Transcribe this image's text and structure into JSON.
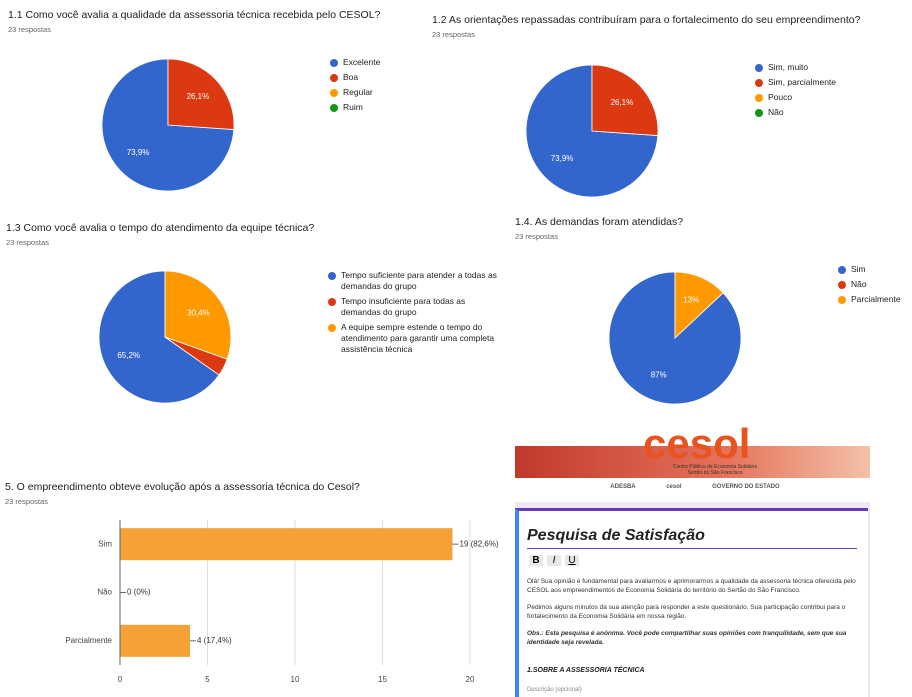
{
  "chart_data": [
    {
      "type": "pie",
      "title": "1.1 Como você avalia a qualidade da assessoria técnica recebida pelo CESOL?",
      "subtitle": "23 respostas",
      "categories": [
        "Excelente",
        "Boa",
        "Regular",
        "Ruim"
      ],
      "values": [
        73.9,
        26.1,
        0,
        0
      ],
      "value_labels": [
        "73,9%",
        "26,1%",
        null,
        null
      ],
      "colors": [
        "#3366cc",
        "#dc3912",
        "#ff9900",
        "#109618"
      ]
    },
    {
      "type": "pie",
      "title": "1.2 As orientações repassadas contribuíram para o fortalecimento do seu empreendimento?",
      "subtitle": "23 respostas",
      "categories": [
        "Sim, muito",
        "Sim, parcialmente",
        "Pouco",
        "Não"
      ],
      "values": [
        73.9,
        26.1,
        0,
        0
      ],
      "value_labels": [
        "73,9%",
        "26,1%",
        null,
        null
      ],
      "colors": [
        "#3366cc",
        "#dc3912",
        "#ff9900",
        "#109618"
      ]
    },
    {
      "type": "pie",
      "title": "1.3 Como você avalia o tempo do atendimento da equipe técnica?",
      "subtitle": "23 respostas",
      "categories": [
        "Tempo suficiente para atender a todas as demandas do grupo",
        "Tempo insuficiente para todas as demandas do grupo",
        "A equipe sempre estende o tempo do atendimento para garantir uma completa assistência técnica"
      ],
      "values": [
        65.2,
        4.3,
        30.4
      ],
      "value_labels": [
        "65,2%",
        null,
        "30,4%"
      ],
      "colors": [
        "#3366cc",
        "#dc3912",
        "#ff9900"
      ]
    },
    {
      "type": "pie",
      "title": "1.4. As demandas foram atendidas?",
      "subtitle": "23 respostas",
      "categories": [
        "Sim",
        "Não",
        "Parcialmente"
      ],
      "values": [
        87,
        0,
        13
      ],
      "value_labels": [
        "87%",
        null,
        "13%"
      ],
      "colors": [
        "#3366cc",
        "#dc3912",
        "#ff9900"
      ]
    },
    {
      "type": "bar",
      "orientation": "horizontal",
      "title": "5. O empreendimento obteve evolução após a assessoria técnica do Cesol?",
      "subtitle": "23 respostas",
      "categories": [
        "Sim",
        "Não",
        "Parcialmente"
      ],
      "values": [
        19,
        0,
        4
      ],
      "value_labels": [
        "19 (82,6%)",
        "0 (0%)",
        "4 (17,4%)"
      ],
      "color": "#f4a235",
      "xlim": [
        0,
        20
      ],
      "xticks": [
        0,
        5,
        10,
        15,
        20
      ],
      "grid": true
    }
  ],
  "form": {
    "logo": "cesol",
    "logo_caption": "Centro Público de Economia Solidária Sertão do São Francisco",
    "sponsors": [
      "ADESBA",
      "cesol",
      "GOVERNO DO ESTADO"
    ],
    "title": "Pesquisa de Satisfação",
    "toolbar": [
      "B",
      "I",
      "U"
    ],
    "paragraphs": [
      "Olá! Sua opinião é fundamental para avaliarmos e aprimorarmos a qualidade da assessoria técnica oferecida pelo CESOL aos empreendimentos de Economia Solidária do território do Sertão do São Francisco.",
      "Pedimos alguns minutos da sua atenção para responder a este questionário. Sua participação contribui para o fortalecimento da Economia Solidária em nossa região.",
      "Obs.: Esta pesquisa é anônima. Você pode compartilhar suas opiniões com tranquilidade, sem que sua identidade seja revelada."
    ],
    "section": "1.SOBRE A ASSESSORIA TÉCNICA",
    "description": "Descrição (opcional)"
  }
}
